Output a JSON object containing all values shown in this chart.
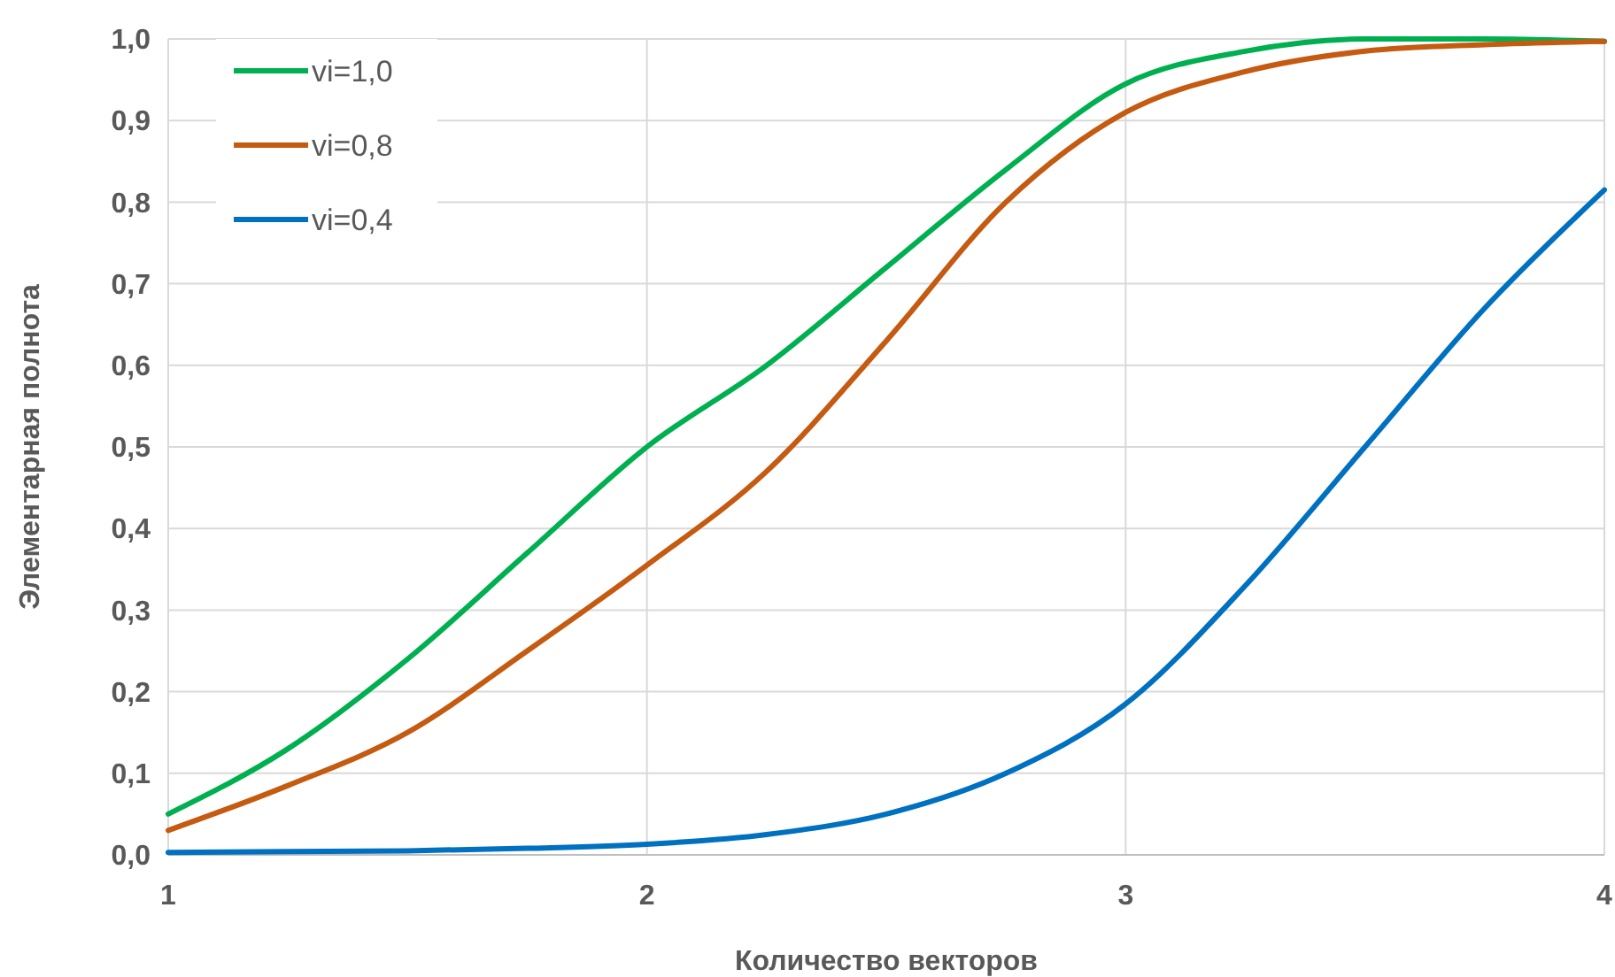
{
  "chart_data": {
    "type": "line",
    "xlabel": "Количество векторов",
    "ylabel": "Элементарная полнота",
    "xlim": [
      1,
      4
    ],
    "xticks": [
      1,
      2,
      3,
      4
    ],
    "ylim": [
      0,
      1
    ],
    "yticks": [
      {
        "value": 0,
        "label": "0,0"
      },
      {
        "value": 0.1,
        "label": "0,1"
      },
      {
        "value": 0.2,
        "label": "0,2"
      },
      {
        "value": 0.3,
        "label": "0,3"
      },
      {
        "value": 0.4,
        "label": "0,4"
      },
      {
        "value": 0.5,
        "label": "0,5"
      },
      {
        "value": 0.6,
        "label": "0,6"
      },
      {
        "value": 0.7,
        "label": "0,7"
      },
      {
        "value": 0.8,
        "label": "0,8"
      },
      {
        "value": 0.9,
        "label": "0,9"
      },
      {
        "value": 1,
        "label": "1,0"
      }
    ],
    "grid": true,
    "legend": "top left",
    "marker": "none",
    "line_style": "solid",
    "x": [
      1,
      1.25,
      1.5,
      1.75,
      2,
      2.25,
      2.5,
      2.75,
      3,
      3.25,
      3.5,
      3.75,
      4
    ],
    "series": [
      {
        "name": "vi=1,0",
        "color": "#00b050",
        "values": [
          0.05,
          0.13,
          0.24,
          0.37,
          0.5,
          0.6,
          0.72,
          0.84,
          0.945,
          0.985,
          1.0,
          1.0,
          0.997
        ]
      },
      {
        "name": "vi=0,8",
        "color": "#c55a11",
        "values": [
          0.03,
          0.085,
          0.15,
          0.25,
          0.355,
          0.47,
          0.63,
          0.8,
          0.91,
          0.96,
          0.985,
          0.993,
          0.997
        ]
      },
      {
        "name": "vi=0,4",
        "color": "#0070c0",
        "values": [
          0.003,
          0.004,
          0.005,
          0.008,
          0.013,
          0.025,
          0.05,
          0.1,
          0.185,
          0.33,
          0.5,
          0.67,
          0.815
        ]
      }
    ]
  }
}
